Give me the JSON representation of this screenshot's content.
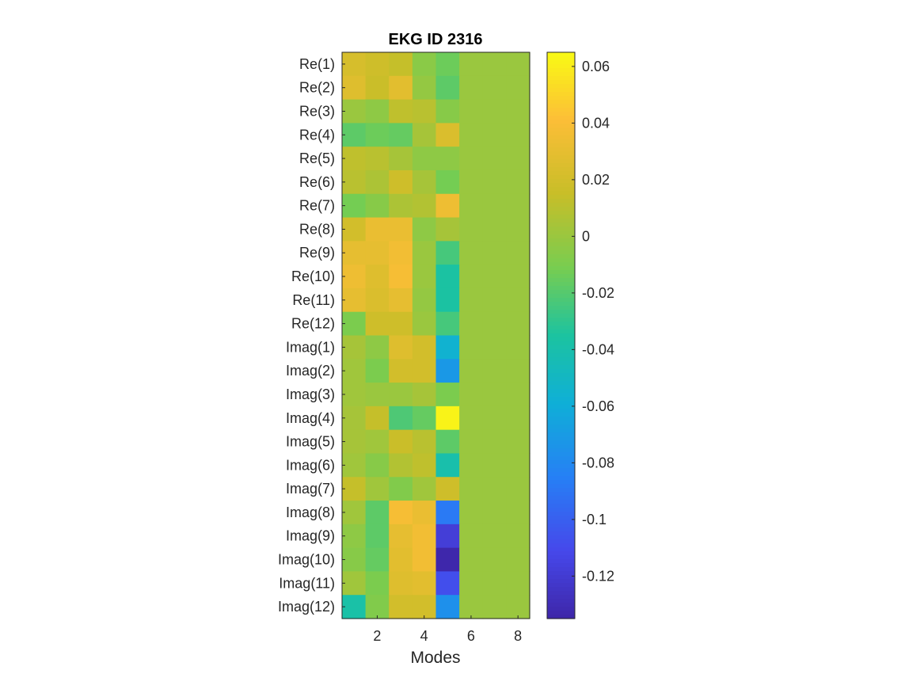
{
  "chart_data": {
    "type": "heatmap",
    "title": "EKG ID 2316",
    "xlabel": "Modes",
    "ylabel": "",
    "x_ticks": [
      2,
      4,
      6,
      8
    ],
    "x_range": [
      0.5,
      8.5
    ],
    "row_labels": [
      "Re(1)",
      "Re(2)",
      "Re(3)",
      "Re(4)",
      "Re(5)",
      "Re(6)",
      "Re(7)",
      "Re(8)",
      "Re(9)",
      "Re(10)",
      "Re(11)",
      "Re(12)",
      "Imag(1)",
      "Imag(2)",
      "Imag(3)",
      "Imag(4)",
      "Imag(5)",
      "Imag(6)",
      "Imag(7)",
      "Imag(8)",
      "Imag(9)",
      "Imag(10)",
      "Imag(11)",
      "Imag(12)"
    ],
    "columns": [
      1,
      2,
      3,
      4,
      5,
      6,
      7,
      8
    ],
    "values": [
      [
        0.022,
        0.018,
        0.014,
        -0.005,
        -0.014,
        0,
        0,
        0
      ],
      [
        0.026,
        0.016,
        0.028,
        -0.002,
        -0.018,
        0,
        0,
        0
      ],
      [
        0.0,
        -0.004,
        0.012,
        0.01,
        -0.006,
        0,
        0,
        0
      ],
      [
        -0.018,
        -0.014,
        -0.016,
        0.004,
        0.024,
        0,
        0,
        0
      ],
      [
        0.012,
        0.01,
        0.004,
        -0.004,
        -0.004,
        0,
        0,
        0
      ],
      [
        0.01,
        0.006,
        0.018,
        0.004,
        -0.012,
        0,
        0,
        0
      ],
      [
        -0.012,
        -0.006,
        0.006,
        0.008,
        0.034,
        0,
        0,
        0
      ],
      [
        0.02,
        0.032,
        0.032,
        -0.004,
        0.004,
        0,
        0,
        0
      ],
      [
        0.03,
        0.03,
        0.036,
        0.0,
        -0.024,
        0,
        0,
        0
      ],
      [
        0.034,
        0.026,
        0.038,
        0.0,
        -0.036,
        0,
        0,
        0
      ],
      [
        0.03,
        0.024,
        0.03,
        -0.002,
        -0.036,
        0,
        0,
        0
      ],
      [
        -0.01,
        0.018,
        0.018,
        0.0,
        -0.024,
        0,
        0,
        0
      ],
      [
        0.004,
        -0.004,
        0.026,
        0.02,
        -0.056,
        0,
        0,
        0
      ],
      [
        0.002,
        -0.01,
        0.02,
        0.02,
        -0.072,
        0,
        0,
        0
      ],
      [
        0.002,
        0.0,
        0.0,
        0.004,
        -0.01,
        0,
        0,
        0
      ],
      [
        0.004,
        0.014,
        -0.022,
        -0.016,
        0.062,
        0,
        0,
        0
      ],
      [
        0.004,
        0.002,
        0.016,
        0.01,
        -0.018,
        0,
        0,
        0
      ],
      [
        0.002,
        -0.006,
        0.008,
        0.012,
        -0.04,
        0,
        0,
        0
      ],
      [
        0.014,
        0.002,
        -0.008,
        0.002,
        0.018,
        0,
        0,
        0
      ],
      [
        0.002,
        -0.018,
        0.038,
        0.032,
        -0.088,
        0,
        0,
        0
      ],
      [
        -0.004,
        -0.018,
        0.03,
        0.036,
        -0.118,
        0,
        0,
        0
      ],
      [
        -0.006,
        -0.016,
        0.028,
        0.036,
        -0.134,
        0,
        0,
        0
      ],
      [
        0.002,
        -0.01,
        0.026,
        0.028,
        -0.108,
        0,
        0,
        0
      ],
      [
        -0.038,
        -0.008,
        0.02,
        0.02,
        -0.076,
        0,
        0,
        0
      ]
    ],
    "color_limits": [
      -0.135,
      0.065
    ],
    "colorbar_ticks": [
      0.06,
      0.04,
      0.02,
      0,
      -0.02,
      -0.04,
      -0.06,
      -0.08,
      -0.1,
      -0.12
    ],
    "colorbar_tick_labels": [
      "0.06",
      "0.04",
      "0.02",
      "0",
      "-0.02",
      "-0.04",
      "-0.06",
      "-0.08",
      "-0.1",
      "-0.12"
    ],
    "colormap": "parula",
    "grid": false,
    "legend": "none"
  }
}
